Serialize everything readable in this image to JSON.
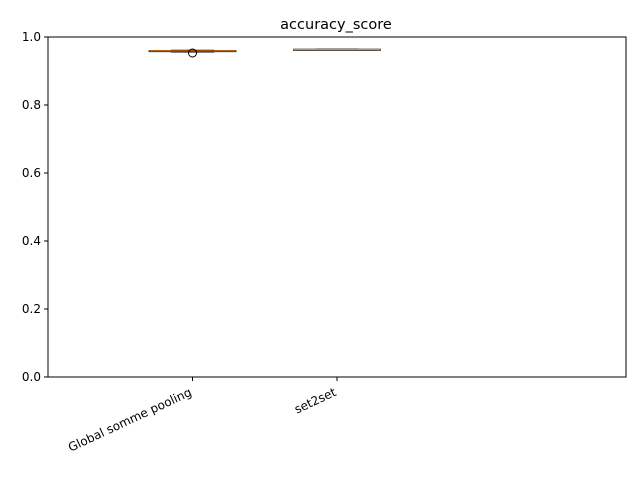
{
  "chart_data": {
    "type": "box",
    "title": "accuracy_score",
    "xlabel": "",
    "ylabel": "",
    "ylim": [
      0,
      1
    ],
    "y_ticks": [
      "0.0",
      "0.2",
      "0.4",
      "0.6",
      "0.8",
      "1.0"
    ],
    "categories": [
      "Global somme pooling",
      "set2set",
      ""
    ],
    "boxes": [
      {
        "category": "Global somme pooling",
        "whislo": 0.956,
        "q1": 0.957,
        "median": 0.959,
        "q3": 0.96,
        "whishi": 0.961,
        "fliers": [
          0.953
        ]
      },
      {
        "category": "set2set",
        "whislo": 0.962,
        "q1": 0.962,
        "median": 0.963,
        "q3": 0.964,
        "whishi": 0.964,
        "fliers": []
      }
    ],
    "grid": false,
    "legend": "none",
    "colors": {
      "box": "#000000",
      "median": "#ff7f0e",
      "flier": "#000000"
    }
  }
}
